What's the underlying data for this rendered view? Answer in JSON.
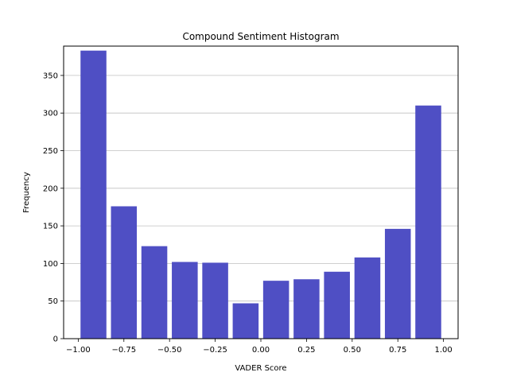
{
  "chart_data": {
    "type": "bar",
    "title": "Compound Sentiment Histogram",
    "xlabel": "VADER Score",
    "ylabel": "Frequency",
    "bin_edges": [
      -1.0,
      -0.8333,
      -0.6667,
      -0.5,
      -0.3333,
      -0.1667,
      0.0,
      0.1667,
      0.3333,
      0.5,
      0.6667,
      0.8333,
      1.0
    ],
    "values": [
      383,
      176,
      123,
      102,
      101,
      47,
      77,
      79,
      89,
      108,
      146,
      310
    ],
    "xlim": [
      -1.08,
      1.08
    ],
    "ylim": [
      0,
      389
    ],
    "xticks": [
      -1.0,
      -0.75,
      -0.5,
      -0.25,
      0.0,
      0.25,
      0.5,
      0.75,
      1.0
    ],
    "xtick_labels": [
      "−1.00",
      "−0.75",
      "−0.50",
      "−0.25",
      "0.00",
      "0.25",
      "0.50",
      "0.75",
      "1.00"
    ],
    "yticks": [
      0,
      50,
      100,
      150,
      200,
      250,
      300,
      350
    ],
    "ytick_labels": [
      "0",
      "50",
      "100",
      "150",
      "200",
      "250",
      "300",
      "350"
    ],
    "bar_color": "#4f4fc4",
    "grid": "y",
    "grid_color": "#c0c0c0",
    "legend": "none"
  }
}
